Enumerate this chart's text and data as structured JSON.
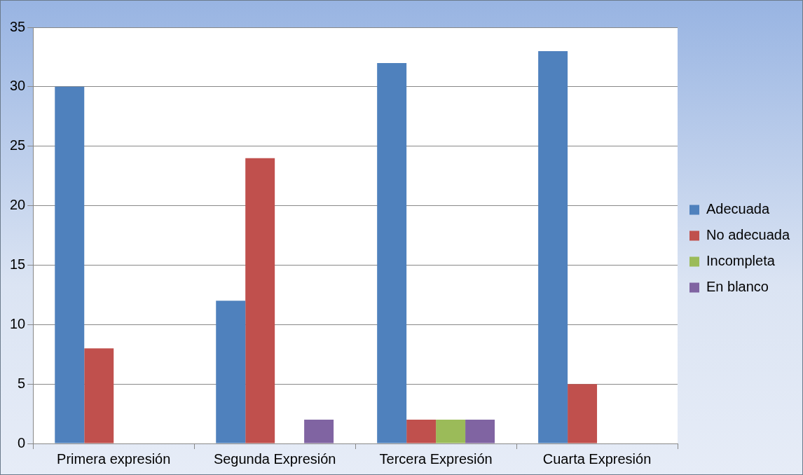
{
  "chart_data": {
    "type": "bar",
    "categories": [
      "Primera expresión",
      "Segunda Expresión",
      "Tercera Expresión",
      "Cuarta Expresión"
    ],
    "series": [
      {
        "name": "Adecuada",
        "color": "#4f81bd",
        "values": [
          30,
          12,
          32,
          33
        ]
      },
      {
        "name": "No adecuada",
        "color": "#c0504d",
        "values": [
          8,
          24,
          2,
          5
        ]
      },
      {
        "name": "Incompleta",
        "color": "#9bbb59",
        "values": [
          0,
          0,
          2,
          0
        ]
      },
      {
        "name": "En blanco",
        "color": "#8064a2",
        "values": [
          0,
          2,
          2,
          0
        ]
      }
    ],
    "ylim": [
      0,
      35
    ],
    "yticks": [
      0,
      5,
      10,
      15,
      20,
      25,
      30,
      35
    ],
    "grid": "y",
    "legend": "right"
  }
}
